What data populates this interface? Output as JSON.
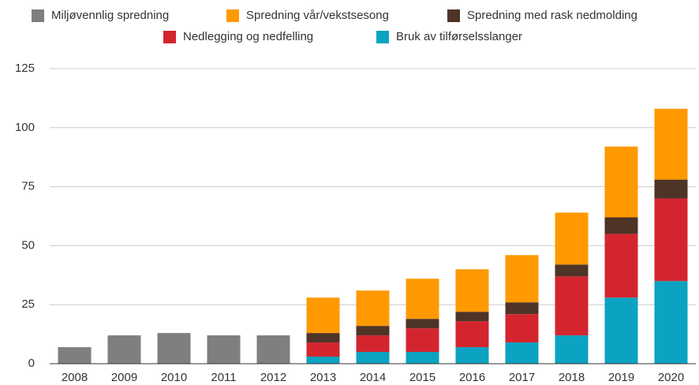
{
  "chart_data": {
    "type": "stacked_bar",
    "categories": [
      "2008",
      "2009",
      "2010",
      "2011",
      "2012",
      "2013",
      "2014",
      "2015",
      "2016",
      "2017",
      "2018",
      "2019",
      "2020"
    ],
    "series": [
      {
        "name": "Miljøvennlig spredning",
        "color": "#7f7f7f",
        "values": [
          7,
          12,
          13,
          12,
          12,
          null,
          null,
          null,
          null,
          null,
          null,
          null,
          null
        ]
      },
      {
        "name": "Spredning vår/vekstsesong",
        "color": "#ff9900",
        "values": [
          null,
          null,
          null,
          null,
          null,
          15,
          15,
          17,
          18,
          20,
          22,
          30,
          30
        ]
      },
      {
        "name": "Spredning med rask nedmolding",
        "color": "#4e3426",
        "values": [
          null,
          null,
          null,
          null,
          null,
          4,
          4,
          4,
          4,
          5,
          5,
          7,
          8
        ]
      },
      {
        "name": "Nedlegging og nedfelling",
        "color": "#d4252f",
        "values": [
          null,
          null,
          null,
          null,
          null,
          6,
          7,
          10,
          11,
          12,
          25,
          27,
          35
        ]
      },
      {
        "name": "Bruk av tilførselsslanger",
        "color": "#0ba3c1",
        "values": [
          null,
          null,
          null,
          null,
          null,
          3,
          5,
          5,
          7,
          9,
          12,
          28,
          35
        ]
      }
    ],
    "ylim": [
      0,
      125
    ],
    "yticks": [
      0,
      25,
      50,
      75,
      100,
      125
    ],
    "grid": true
  }
}
